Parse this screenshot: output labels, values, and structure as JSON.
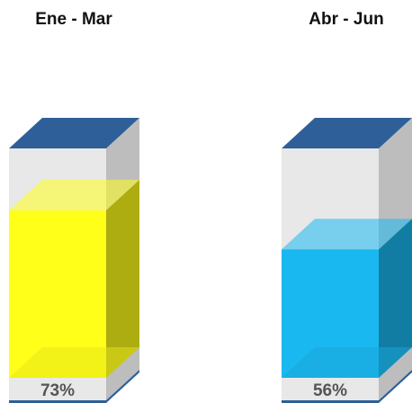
{
  "chart_data": {
    "type": "bar",
    "categories": [
      "Ene - Mar",
      "Abr - Jun"
    ],
    "values": [
      73,
      56
    ],
    "value_labels": [
      "73%",
      "56%"
    ],
    "colors": [
      "#ffff1a",
      "#1ab8f0"
    ],
    "ylim": [
      0,
      100
    ]
  }
}
